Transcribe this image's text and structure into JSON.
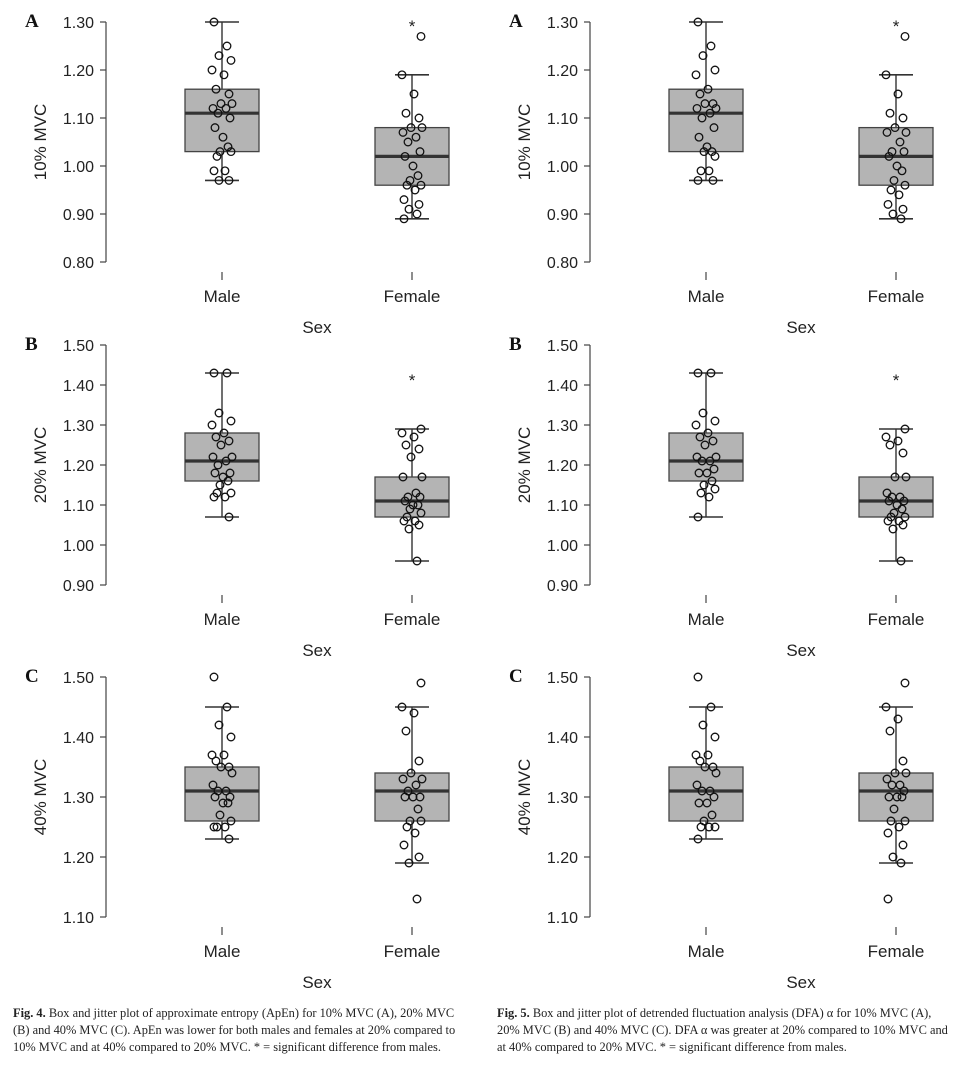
{
  "chart_data": [
    {
      "figure": "Fig. 4",
      "panel": "A",
      "type": "box",
      "ylabel": "10% MVC",
      "xlabel": "Sex",
      "categories": [
        "Male",
        "Female"
      ],
      "ylim": [
        0.8,
        1.3
      ],
      "yticks": [
        "0.80",
        "0.90",
        "1.00",
        "1.10",
        "1.20",
        "1.30"
      ],
      "boxes": [
        {
          "name": "Male",
          "min": 0.97,
          "q1": 1.03,
          "median": 1.11,
          "q3": 1.16,
          "max": 1.3,
          "star": "",
          "points": [
            1.3,
            1.25,
            1.23,
            1.22,
            1.2,
            1.19,
            1.16,
            1.15,
            1.13,
            1.13,
            1.12,
            1.12,
            1.11,
            1.1,
            1.08,
            1.06,
            1.04,
            1.03,
            1.03,
            1.02,
            0.99,
            0.99,
            0.97,
            0.97
          ]
        },
        {
          "name": "Female",
          "min": 0.89,
          "q1": 0.96,
          "median": 1.02,
          "q3": 1.08,
          "max": 1.19,
          "star": "*",
          "points": [
            1.27,
            1.19,
            1.15,
            1.11,
            1.1,
            1.08,
            1.08,
            1.07,
            1.06,
            1.05,
            1.03,
            1.02,
            1.0,
            0.98,
            0.97,
            0.96,
            0.96,
            0.95,
            0.93,
            0.92,
            0.91,
            0.9,
            0.89
          ]
        }
      ]
    },
    {
      "figure": "Fig. 4",
      "panel": "B",
      "type": "box",
      "ylabel": "20% MVC",
      "xlabel": "Sex",
      "categories": [
        "Male",
        "Female"
      ],
      "ylim": [
        0.9,
        1.5
      ],
      "yticks": [
        "0.90",
        "1.00",
        "1.10",
        "1.20",
        "1.30",
        "1.40",
        "1.50"
      ],
      "boxes": [
        {
          "name": "Male",
          "min": 1.07,
          "q1": 1.16,
          "median": 1.21,
          "q3": 1.28,
          "max": 1.43,
          "star": "",
          "points": [
            1.43,
            1.43,
            1.33,
            1.31,
            1.3,
            1.28,
            1.27,
            1.26,
            1.25,
            1.22,
            1.22,
            1.21,
            1.2,
            1.18,
            1.18,
            1.17,
            1.16,
            1.15,
            1.13,
            1.13,
            1.12,
            1.12,
            1.07
          ]
        },
        {
          "name": "Female",
          "min": 0.96,
          "q1": 1.07,
          "median": 1.11,
          "q3": 1.17,
          "max": 1.29,
          "star": "*",
          "points": [
            1.29,
            1.28,
            1.27,
            1.25,
            1.24,
            1.22,
            1.17,
            1.17,
            1.13,
            1.12,
            1.12,
            1.11,
            1.1,
            1.1,
            1.09,
            1.08,
            1.07,
            1.06,
            1.06,
            1.05,
            1.04,
            0.96
          ]
        }
      ]
    },
    {
      "figure": "Fig. 4",
      "panel": "C",
      "type": "box",
      "ylabel": "40% MVC",
      "xlabel": "Sex",
      "categories": [
        "Male",
        "Female"
      ],
      "ylim": [
        1.1,
        1.5
      ],
      "yticks": [
        "1.10",
        "1.20",
        "1.30",
        "1.40",
        "1.50"
      ],
      "boxes": [
        {
          "name": "Male",
          "min": 1.23,
          "q1": 1.26,
          "median": 1.31,
          "q3": 1.35,
          "max": 1.45,
          "star": "",
          "points": [
            1.5,
            1.45,
            1.42,
            1.4,
            1.37,
            1.37,
            1.36,
            1.35,
            1.35,
            1.34,
            1.32,
            1.31,
            1.31,
            1.3,
            1.3,
            1.29,
            1.29,
            1.27,
            1.26,
            1.25,
            1.25,
            1.25,
            1.23
          ]
        },
        {
          "name": "Female",
          "min": 1.19,
          "q1": 1.26,
          "median": 1.31,
          "q3": 1.34,
          "max": 1.45,
          "star": "",
          "points": [
            1.49,
            1.45,
            1.44,
            1.41,
            1.36,
            1.34,
            1.33,
            1.33,
            1.32,
            1.31,
            1.3,
            1.3,
            1.3,
            1.28,
            1.26,
            1.26,
            1.25,
            1.24,
            1.22,
            1.2,
            1.19,
            1.13
          ]
        }
      ]
    },
    {
      "figure": "Fig. 5",
      "panel": "A",
      "type": "box",
      "ylabel": "10% MVC",
      "xlabel": "Sex",
      "categories": [
        "Male",
        "Female"
      ],
      "ylim": [
        0.8,
        1.3
      ],
      "yticks": [
        "0.80",
        "0.90",
        "1.00",
        "1.10",
        "1.20",
        "1.30"
      ],
      "boxes": [
        {
          "name": "Male",
          "min": 0.97,
          "q1": 1.03,
          "median": 1.11,
          "q3": 1.16,
          "max": 1.3,
          "star": "",
          "points": [
            1.3,
            1.25,
            1.23,
            1.2,
            1.19,
            1.16,
            1.15,
            1.13,
            1.13,
            1.12,
            1.12,
            1.11,
            1.1,
            1.08,
            1.06,
            1.04,
            1.03,
            1.03,
            1.02,
            0.99,
            0.99,
            0.97,
            0.97
          ]
        },
        {
          "name": "Female",
          "min": 0.89,
          "q1": 0.96,
          "median": 1.02,
          "q3": 1.08,
          "max": 1.19,
          "star": "*",
          "points": [
            1.27,
            1.19,
            1.15,
            1.11,
            1.1,
            1.08,
            1.07,
            1.07,
            1.05,
            1.03,
            1.03,
            1.02,
            1.0,
            0.99,
            0.97,
            0.96,
            0.95,
            0.94,
            0.92,
            0.91,
            0.9,
            0.89
          ]
        }
      ]
    },
    {
      "figure": "Fig. 5",
      "panel": "B",
      "type": "box",
      "ylabel": "20% MVC",
      "xlabel": "Sex",
      "categories": [
        "Male",
        "Female"
      ],
      "ylim": [
        0.9,
        1.5
      ],
      "yticks": [
        "0.90",
        "1.00",
        "1.10",
        "1.20",
        "1.30",
        "1.40",
        "1.50"
      ],
      "boxes": [
        {
          "name": "Male",
          "min": 1.07,
          "q1": 1.16,
          "median": 1.21,
          "q3": 1.28,
          "max": 1.43,
          "star": "",
          "points": [
            1.43,
            1.43,
            1.33,
            1.31,
            1.3,
            1.28,
            1.27,
            1.26,
            1.25,
            1.22,
            1.22,
            1.21,
            1.21,
            1.19,
            1.18,
            1.18,
            1.16,
            1.15,
            1.14,
            1.13,
            1.12,
            1.07
          ]
        },
        {
          "name": "Female",
          "min": 0.96,
          "q1": 1.07,
          "median": 1.11,
          "q3": 1.17,
          "max": 1.29,
          "star": "*",
          "points": [
            1.29,
            1.27,
            1.26,
            1.25,
            1.23,
            1.17,
            1.17,
            1.13,
            1.12,
            1.12,
            1.11,
            1.11,
            1.1,
            1.09,
            1.08,
            1.07,
            1.07,
            1.06,
            1.06,
            1.05,
            1.04,
            0.96
          ]
        }
      ]
    },
    {
      "figure": "Fig. 5",
      "panel": "C",
      "type": "box",
      "ylabel": "40% MVC",
      "xlabel": "Sex",
      "categories": [
        "Male",
        "Female"
      ],
      "ylim": [
        1.1,
        1.5
      ],
      "yticks": [
        "1.10",
        "1.20",
        "1.30",
        "1.40",
        "1.50"
      ],
      "boxes": [
        {
          "name": "Male",
          "min": 1.23,
          "q1": 1.26,
          "median": 1.31,
          "q3": 1.35,
          "max": 1.45,
          "star": "",
          "points": [
            1.5,
            1.45,
            1.42,
            1.4,
            1.37,
            1.37,
            1.36,
            1.35,
            1.35,
            1.34,
            1.32,
            1.31,
            1.31,
            1.3,
            1.29,
            1.29,
            1.27,
            1.26,
            1.25,
            1.25,
            1.25,
            1.23
          ]
        },
        {
          "name": "Female",
          "min": 1.19,
          "q1": 1.26,
          "median": 1.31,
          "q3": 1.34,
          "max": 1.45,
          "star": "",
          "points": [
            1.49,
            1.45,
            1.43,
            1.41,
            1.36,
            1.34,
            1.34,
            1.33,
            1.32,
            1.32,
            1.31,
            1.3,
            1.3,
            1.3,
            1.28,
            1.26,
            1.26,
            1.25,
            1.24,
            1.22,
            1.2,
            1.19,
            1.13
          ]
        }
      ]
    }
  ],
  "captions": {
    "fig4": {
      "label": "Fig. 4.",
      "text": "Box and jitter plot of approximate entropy (ApEn) for 10% MVC (A), 20% MVC (B) and 40% MVC (C). ApEn was lower for both males and females at 20% compared to 10% MVC and at 40% compared to 20% MVC. * = significant difference from males."
    },
    "fig5": {
      "label": "Fig. 5.",
      "text": "Box and jitter plot of detrended fluctuation analysis (DFA) α for 10% MVC (A), 20% MVC (B) and 40% MVC (C). DFA α was greater at 20% compared to 10% MVC and at 40% compared to 20% MVC. * = significant difference from males."
    }
  }
}
